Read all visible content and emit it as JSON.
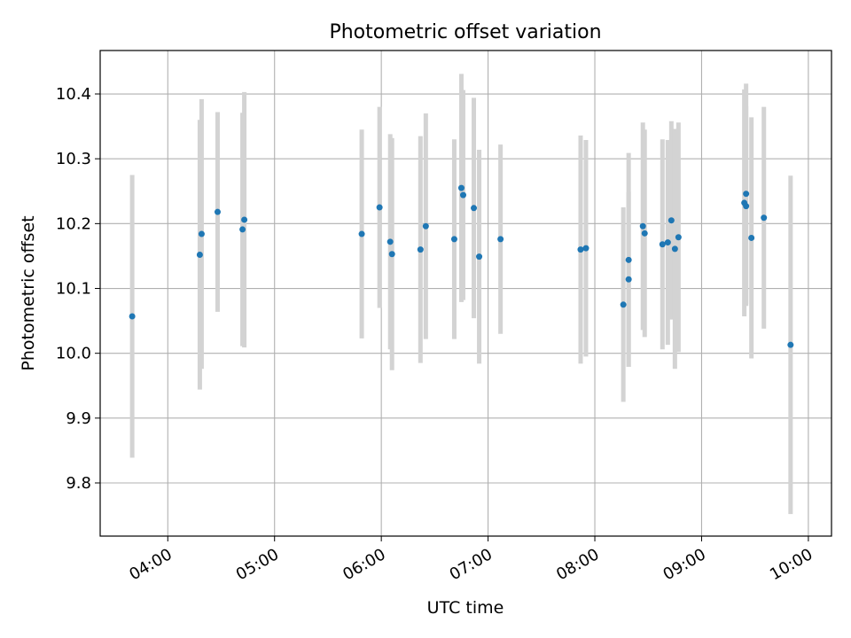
{
  "chart_data": {
    "type": "scatter",
    "title": "Photometric offset variation",
    "xlabel": "UTC time",
    "ylabel": "Photometric offset",
    "x_ticks": [
      "04:00",
      "05:00",
      "06:00",
      "07:00",
      "08:00",
      "09:00",
      "10:00"
    ],
    "y_ticks": [
      "9.8",
      "9.9",
      "10.0",
      "10.1",
      "10.2",
      "10.3",
      "10.4"
    ],
    "xlim": [
      "03:22",
      "10:13"
    ],
    "ylim": [
      9.718,
      10.467
    ],
    "grid": true,
    "point_color": "#1f77b4",
    "errorbar_color": "#d3d3d3",
    "points": [
      {
        "t": "03:40",
        "y": 10.057,
        "err": 0.218
      },
      {
        "t": "04:18",
        "y": 10.152,
        "err": 0.208
      },
      {
        "t": "04:19",
        "y": 10.184,
        "err": 0.208
      },
      {
        "t": "04:28",
        "y": 10.218,
        "err": 0.154
      },
      {
        "t": "04:42",
        "y": 10.191,
        "err": 0.18
      },
      {
        "t": "04:43",
        "y": 10.206,
        "err": 0.197
      },
      {
        "t": "05:49",
        "y": 10.184,
        "err": 0.161
      },
      {
        "t": "05:59",
        "y": 10.225,
        "err": 0.155
      },
      {
        "t": "06:05",
        "y": 10.172,
        "err": 0.166
      },
      {
        "t": "06:06",
        "y": 10.153,
        "err": 0.179
      },
      {
        "t": "06:22",
        "y": 10.16,
        "err": 0.175
      },
      {
        "t": "06:25",
        "y": 10.196,
        "err": 0.174
      },
      {
        "t": "06:41",
        "y": 10.176,
        "err": 0.154
      },
      {
        "t": "06:45",
        "y": 10.255,
        "err": 0.176
      },
      {
        "t": "06:46",
        "y": 10.244,
        "err": 0.162
      },
      {
        "t": "06:52",
        "y": 10.224,
        "err": 0.17
      },
      {
        "t": "06:55",
        "y": 10.149,
        "err": 0.165
      },
      {
        "t": "07:07",
        "y": 10.176,
        "err": 0.146
      },
      {
        "t": "07:52",
        "y": 10.16,
        "err": 0.176
      },
      {
        "t": "07:55",
        "y": 10.162,
        "err": 0.167
      },
      {
        "t": "08:16",
        "y": 10.075,
        "err": 0.15
      },
      {
        "t": "08:19",
        "y": 10.114,
        "err": 0.135
      },
      {
        "t": "08:19",
        "y": 10.144,
        "err": 0.165
      },
      {
        "t": "08:27",
        "y": 10.196,
        "err": 0.16
      },
      {
        "t": "08:28",
        "y": 10.185,
        "err": 0.16
      },
      {
        "t": "08:38",
        "y": 10.168,
        "err": 0.162
      },
      {
        "t": "08:41",
        "y": 10.171,
        "err": 0.158
      },
      {
        "t": "08:43",
        "y": 10.205,
        "err": 0.153
      },
      {
        "t": "08:45",
        "y": 10.161,
        "err": 0.185
      },
      {
        "t": "08:47",
        "y": 10.179,
        "err": 0.177
      },
      {
        "t": "09:24",
        "y": 10.232,
        "err": 0.175
      },
      {
        "t": "09:25",
        "y": 10.227,
        "err": 0.154
      },
      {
        "t": "09:25",
        "y": 10.246,
        "err": 0.17
      },
      {
        "t": "09:28",
        "y": 10.178,
        "err": 0.186
      },
      {
        "t": "09:35",
        "y": 10.209,
        "err": 0.171
      },
      {
        "t": "09:50",
        "y": 10.013,
        "err": 0.261
      }
    ]
  }
}
